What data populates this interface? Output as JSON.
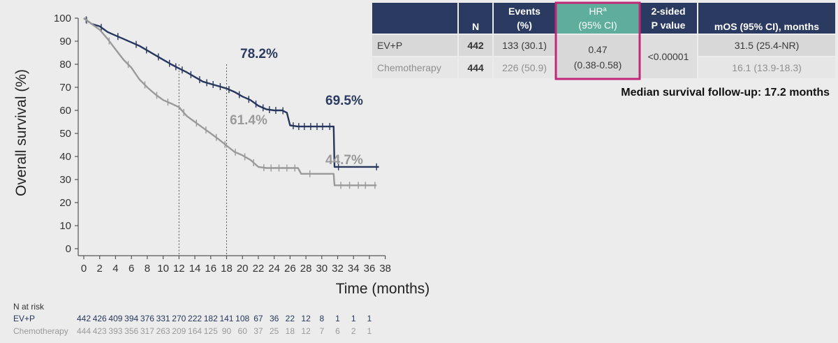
{
  "chart_data": {
    "type": "line",
    "xlabel": "Time (months)",
    "ylabel": "Overall survival (%)",
    "xlim": [
      0,
      38
    ],
    "ylim": [
      0,
      100
    ],
    "x_ticks": [
      0,
      2,
      4,
      6,
      8,
      10,
      12,
      14,
      16,
      18,
      20,
      22,
      24,
      26,
      28,
      30,
      32,
      34,
      36,
      38
    ],
    "y_ticks": [
      0,
      10,
      20,
      30,
      40,
      50,
      60,
      70,
      80,
      90,
      100
    ],
    "grid": false,
    "series": [
      {
        "name": "EV+P",
        "color": "#26365c",
        "x": [
          0,
          1,
          2,
          3,
          4,
          5,
          6,
          7,
          8,
          9,
          10,
          11,
          12,
          13,
          14,
          15,
          16,
          17,
          18,
          19,
          20,
          21,
          22,
          23,
          24,
          25,
          25.6,
          26,
          27,
          28,
          29,
          30,
          31,
          31.5,
          31.6,
          32,
          34,
          36,
          37.2
        ],
        "y": [
          100,
          97.5,
          96.5,
          94,
          92.5,
          91,
          89.5,
          88,
          86,
          84,
          82,
          80,
          78.2,
          76.5,
          74.5,
          72.5,
          71.5,
          70.5,
          69.5,
          68,
          66,
          64.5,
          62,
          60.5,
          60,
          60,
          59,
          53.5,
          53,
          53,
          53,
          53,
          53,
          53,
          35.5,
          35.5,
          35.5,
          35.5,
          35.5
        ],
        "censor_x": [
          0.3,
          2.2,
          4.3,
          6.6,
          7.9,
          9.4,
          10.8,
          11.6,
          12.4,
          13.5,
          14.6,
          15.5,
          16.3,
          17.2,
          18.3,
          19.6,
          20.8,
          21.7,
          22.6,
          23.4,
          24.2,
          25.1,
          26.4,
          27.1,
          27.8,
          28.6,
          29.4,
          30.1,
          31.0,
          32.1,
          36.9
        ]
      },
      {
        "name": "Chemotherapy",
        "color": "#9a9a9a",
        "x": [
          0,
          1,
          2,
          3,
          4,
          5,
          6,
          7,
          8,
          9,
          10,
          11,
          12,
          13,
          14,
          15,
          16,
          17,
          18,
          19,
          20,
          21,
          22,
          23,
          24,
          25,
          26,
          27,
          27.4,
          28,
          30,
          31.5,
          31.6,
          32,
          34,
          36,
          36.9
        ],
        "y": [
          100,
          97.5,
          95,
          91,
          86.5,
          82,
          78.5,
          73.5,
          70,
          67,
          64.5,
          63,
          61.4,
          57.5,
          55,
          52.5,
          50,
          47.5,
          44.7,
          42,
          40.5,
          38.5,
          35.5,
          35,
          35,
          35,
          35,
          35,
          32.5,
          32.5,
          32.5,
          32.5,
          27.5,
          27.5,
          27.5,
          27.5,
          27.5
        ],
        "censor_x": [
          0.4,
          3.2,
          5.6,
          7.7,
          9.2,
          10.6,
          12.6,
          14.2,
          15.4,
          16.7,
          17.8,
          19.1,
          20.3,
          21.4,
          22.7,
          23.6,
          24.6,
          25.6,
          26.6,
          28.5,
          32.4,
          33.5,
          34.6,
          35.5,
          36.7
        ]
      }
    ],
    "annotations": [
      {
        "text": "78.2%",
        "series": "EV+P"
      },
      {
        "text": "69.5%",
        "series": "EV+P"
      },
      {
        "text": "61.4%",
        "series": "Chemotherapy"
      },
      {
        "text": "44.7%",
        "series": "Chemotherapy"
      }
    ],
    "reference_lines_x": [
      12,
      18
    ],
    "number_at_risk": {
      "title": "N at risk",
      "times": [
        0,
        2,
        4,
        6,
        8,
        10,
        12,
        14,
        16,
        18,
        20,
        22,
        24,
        26,
        28,
        30,
        32,
        34,
        36
      ],
      "rows": [
        {
          "label": "EV+P",
          "values": [
            442,
            426,
            409,
            394,
            376,
            331,
            270,
            222,
            182,
            141,
            108,
            67,
            36,
            22,
            12,
            8,
            1,
            1,
            1
          ]
        },
        {
          "label": "Chemotherapy",
          "values": [
            444,
            423,
            393,
            356,
            317,
            263,
            209,
            164,
            125,
            90,
            60,
            37,
            25,
            18,
            12,
            7,
            6,
            2,
            1
          ]
        }
      ]
    }
  },
  "summary_table": {
    "headers": {
      "n": "N",
      "events_line1": "Events",
      "events_line2": "(%)",
      "hr_line1": "HR",
      "hr_sup": "a",
      "hr_line2": "(95% CI)",
      "p_line1": "2-sided",
      "p_line2": "P value",
      "mos": "mOS (95% CI), months"
    },
    "rows": [
      {
        "arm": "EV+P",
        "n": "442",
        "events": "133 (30.1)",
        "mos": "31.5 (25.4-NR)"
      },
      {
        "arm": "Chemotherapy",
        "n": "444",
        "events": "226 (50.9)",
        "mos": "16.1 (13.9-18.3)"
      }
    ],
    "hr_value": "0.47",
    "hr_ci": "(0.38-0.58)",
    "p_value": "<0.00001",
    "header_color": "#2b3a61",
    "hr_header_color": "#5fae9c",
    "highlight_color": "#c0287a"
  },
  "followup_text": "Median survival follow-up: 17.2 months"
}
